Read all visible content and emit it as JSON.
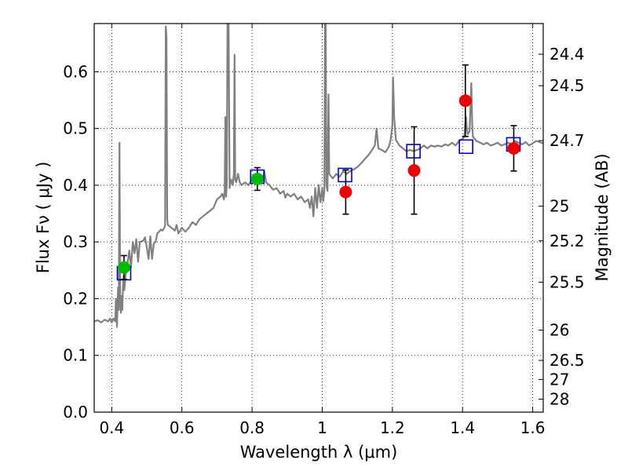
{
  "chart_data": {
    "type": "scatter",
    "xlabel": "Wavelength  λ (μm)",
    "ylabel": "Flux  Fν  ( μJy )",
    "y2label": "Magnitude (AB)",
    "xlim": [
      0.35,
      1.63
    ],
    "ylim": [
      0.0,
      0.685
    ],
    "grid": true,
    "x_ticks": [
      {
        "v": 0.4,
        "label": "0.4"
      },
      {
        "v": 0.6,
        "label": "0.6"
      },
      {
        "v": 0.8,
        "label": "0.8"
      },
      {
        "v": 1.0,
        "label": "1"
      },
      {
        "v": 1.2,
        "label": "1.2"
      },
      {
        "v": 1.4,
        "label": "1.4"
      },
      {
        "v": 1.6,
        "label": "1.6"
      }
    ],
    "y_ticks": [
      {
        "v": 0.0,
        "label": "0.0"
      },
      {
        "v": 0.1,
        "label": "0.1"
      },
      {
        "v": 0.2,
        "label": "0.2"
      },
      {
        "v": 0.3,
        "label": "0.3"
      },
      {
        "v": 0.4,
        "label": "0.4"
      },
      {
        "v": 0.5,
        "label": "0.5"
      },
      {
        "v": 0.6,
        "label": "0.6"
      }
    ],
    "mag_ticks": [
      {
        "mag": 24.4,
        "label": "24.4"
      },
      {
        "mag": 24.5,
        "label": "24.5"
      },
      {
        "mag": 24.7,
        "label": "24.7"
      },
      {
        "mag": 25.0,
        "label": "25"
      },
      {
        "mag": 25.2,
        "label": "25.2"
      },
      {
        "mag": 25.5,
        "label": "25.5"
      },
      {
        "mag": 26.0,
        "label": "26"
      },
      {
        "mag": 26.5,
        "label": "26.5"
      },
      {
        "mag": 27.0,
        "label": "27"
      },
      {
        "mag": 28.0,
        "label": "28"
      }
    ],
    "spectrum": {
      "color": "#808080",
      "points": [
        [
          0.35,
          0.16
        ],
        [
          0.36,
          0.162
        ],
        [
          0.37,
          0.158
        ],
        [
          0.38,
          0.163
        ],
        [
          0.39,
          0.16
        ],
        [
          0.395,
          0.165
        ],
        [
          0.4,
          0.158
        ],
        [
          0.405,
          0.165
        ],
        [
          0.41,
          0.16
        ],
        [
          0.412,
          0.2
        ],
        [
          0.415,
          0.15
        ],
        [
          0.418,
          0.22
        ],
        [
          0.42,
          0.18
        ],
        [
          0.422,
          0.475
        ],
        [
          0.424,
          0.2
        ],
        [
          0.426,
          0.175
        ],
        [
          0.428,
          0.205
        ],
        [
          0.43,
          0.18
        ],
        [
          0.432,
          0.22
        ],
        [
          0.434,
          0.24
        ],
        [
          0.436,
          0.215
        ],
        [
          0.44,
          0.245
        ],
        [
          0.445,
          0.262
        ],
        [
          0.45,
          0.285
        ],
        [
          0.455,
          0.255
        ],
        [
          0.46,
          0.3
        ],
        [
          0.465,
          0.28
        ],
        [
          0.47,
          0.305
        ],
        [
          0.475,
          0.265
        ],
        [
          0.48,
          0.3
        ],
        [
          0.49,
          0.302
        ],
        [
          0.495,
          0.308
        ],
        [
          0.5,
          0.29
        ],
        [
          0.505,
          0.27
        ],
        [
          0.51,
          0.31
        ],
        [
          0.515,
          0.27
        ],
        [
          0.52,
          0.298
        ],
        [
          0.525,
          0.3
        ],
        [
          0.53,
          0.315
        ],
        [
          0.535,
          0.318
        ],
        [
          0.54,
          0.322
        ],
        [
          0.545,
          0.32
        ],
        [
          0.55,
          0.325
        ],
        [
          0.552,
          0.33
        ],
        [
          0.554,
          0.68
        ],
        [
          0.556,
          0.66
        ],
        [
          0.558,
          0.34
        ],
        [
          0.56,
          0.33
        ],
        [
          0.57,
          0.325
        ],
        [
          0.58,
          0.32
        ],
        [
          0.585,
          0.33
        ],
        [
          0.59,
          0.315
        ],
        [
          0.6,
          0.325
        ],
        [
          0.61,
          0.318
        ],
        [
          0.62,
          0.325
        ],
        [
          0.63,
          0.335
        ],
        [
          0.64,
          0.33
        ],
        [
          0.65,
          0.34
        ],
        [
          0.66,
          0.345
        ],
        [
          0.67,
          0.35
        ],
        [
          0.68,
          0.355
        ],
        [
          0.69,
          0.36
        ],
        [
          0.7,
          0.375
        ],
        [
          0.71,
          0.38
        ],
        [
          0.715,
          0.385
        ],
        [
          0.72,
          0.375
        ],
        [
          0.722,
          0.39
        ],
        [
          0.724,
          0.52
        ],
        [
          0.726,
          0.38
        ],
        [
          0.728,
          0.4
        ],
        [
          0.73,
          0.685
        ],
        [
          0.733,
          0.685
        ],
        [
          0.736,
          0.395
        ],
        [
          0.74,
          0.41
        ],
        [
          0.745,
          0.4
        ],
        [
          0.748,
          0.42
        ],
        [
          0.75,
          0.63
        ],
        [
          0.752,
          0.41
        ],
        [
          0.755,
          0.405
        ],
        [
          0.76,
          0.42
        ],
        [
          0.765,
          0.405
        ],
        [
          0.77,
          0.4
        ],
        [
          0.78,
          0.405
        ],
        [
          0.79,
          0.4
        ],
        [
          0.8,
          0.41
        ],
        [
          0.81,
          0.415
        ],
        [
          0.815,
          0.408
        ],
        [
          0.82,
          0.42
        ],
        [
          0.83,
          0.41
        ],
        [
          0.835,
          0.425
        ],
        [
          0.84,
          0.405
        ],
        [
          0.85,
          0.4
        ],
        [
          0.86,
          0.392
        ],
        [
          0.87,
          0.395
        ],
        [
          0.88,
          0.385
        ],
        [
          0.89,
          0.39
        ],
        [
          0.895,
          0.378
        ],
        [
          0.9,
          0.385
        ],
        [
          0.91,
          0.38
        ],
        [
          0.92,
          0.385
        ],
        [
          0.93,
          0.375
        ],
        [
          0.94,
          0.38
        ],
        [
          0.95,
          0.37
        ],
        [
          0.96,
          0.375
        ],
        [
          0.965,
          0.36
        ],
        [
          0.97,
          0.38
        ],
        [
          0.975,
          0.345
        ],
        [
          0.98,
          0.395
        ],
        [
          0.985,
          0.36
        ],
        [
          0.99,
          0.4
        ],
        [
          0.995,
          0.37
        ],
        [
          1.0,
          0.395
        ],
        [
          1.003,
          0.372
        ],
        [
          1.006,
          0.39
        ],
        [
          1.008,
          0.685
        ],
        [
          1.01,
          0.685
        ],
        [
          1.012,
          0.4
        ],
        [
          1.015,
          0.39
        ],
        [
          1.018,
          0.56
        ],
        [
          1.02,
          0.42
        ],
        [
          1.03,
          0.412
        ],
        [
          1.04,
          0.42
        ],
        [
          1.05,
          0.415
        ],
        [
          1.06,
          0.425
        ],
        [
          1.07,
          0.42
        ],
        [
          1.08,
          0.425
        ],
        [
          1.09,
          0.428
        ],
        [
          1.1,
          0.432
        ],
        [
          1.11,
          0.438
        ],
        [
          1.12,
          0.445
        ],
        [
          1.13,
          0.452
        ],
        [
          1.14,
          0.46
        ],
        [
          1.15,
          0.47
        ],
        [
          1.155,
          0.5
        ],
        [
          1.16,
          0.465
        ],
        [
          1.17,
          0.462
        ],
        [
          1.18,
          0.458
        ],
        [
          1.19,
          0.468
        ],
        [
          1.195,
          0.48
        ],
        [
          1.2,
          0.505
        ],
        [
          1.202,
          0.59
        ],
        [
          1.205,
          0.52
        ],
        [
          1.21,
          0.48
        ],
        [
          1.22,
          0.47
        ],
        [
          1.23,
          0.465
        ],
        [
          1.24,
          0.46
        ],
        [
          1.25,
          0.462
        ],
        [
          1.26,
          0.46
        ],
        [
          1.27,
          0.462
        ],
        [
          1.28,
          0.465
        ],
        [
          1.29,
          0.47
        ],
        [
          1.3,
          0.465
        ],
        [
          1.31,
          0.47
        ],
        [
          1.32,
          0.468
        ],
        [
          1.33,
          0.47
        ],
        [
          1.34,
          0.468
        ],
        [
          1.35,
          0.472
        ],
        [
          1.36,
          0.47
        ],
        [
          1.37,
          0.475
        ],
        [
          1.38,
          0.47
        ],
        [
          1.39,
          0.478
        ],
        [
          1.4,
          0.482
        ],
        [
          1.405,
          0.485
        ],
        [
          1.408,
          0.51
        ],
        [
          1.41,
          0.52
        ],
        [
          1.412,
          0.5
        ],
        [
          1.415,
          0.49
        ],
        [
          1.42,
          0.495
        ],
        [
          1.425,
          0.58
        ],
        [
          1.428,
          0.5
        ],
        [
          1.43,
          0.485
        ],
        [
          1.44,
          0.478
        ],
        [
          1.45,
          0.475
        ],
        [
          1.46,
          0.472
        ],
        [
          1.47,
          0.475
        ],
        [
          1.48,
          0.47
        ],
        [
          1.49,
          0.472
        ],
        [
          1.5,
          0.475
        ],
        [
          1.51,
          0.47
        ],
        [
          1.52,
          0.472
        ],
        [
          1.53,
          0.475
        ],
        [
          1.54,
          0.472
        ],
        [
          1.55,
          0.478
        ],
        [
          1.56,
          0.475
        ],
        [
          1.57,
          0.472
        ],
        [
          1.58,
          0.476
        ],
        [
          1.59,
          0.47
        ],
        [
          1.6,
          0.474
        ],
        [
          1.61,
          0.478
        ],
        [
          1.62,
          0.476
        ],
        [
          1.63,
          0.474
        ]
      ]
    },
    "model_bands": {
      "color": "#0000cc",
      "points": [
        {
          "x": 0.435,
          "y": 0.245
        },
        {
          "x": 0.815,
          "y": 0.415
        },
        {
          "x": 1.065,
          "y": 0.418
        },
        {
          "x": 1.26,
          "y": 0.46
        },
        {
          "x": 1.41,
          "y": 0.468
        },
        {
          "x": 1.545,
          "y": 0.472
        }
      ]
    },
    "optical_obs": {
      "color": "#00bb00",
      "points": [
        {
          "x": 0.435,
          "y": 0.255,
          "lo": 0.234,
          "hi": 0.276
        },
        {
          "x": 0.815,
          "y": 0.411,
          "lo": 0.391,
          "hi": 0.431
        }
      ]
    },
    "nir_obs": {
      "color": "#ee0000",
      "points": [
        {
          "x": 1.067,
          "y": 0.388,
          "lo": 0.349,
          "hi": 0.427
        },
        {
          "x": 1.262,
          "y": 0.426,
          "lo": 0.349,
          "hi": 0.503
        },
        {
          "x": 1.408,
          "y": 0.549,
          "lo": 0.486,
          "hi": 0.612
        },
        {
          "x": 1.546,
          "y": 0.465,
          "lo": 0.425,
          "hi": 0.505
        }
      ]
    }
  }
}
